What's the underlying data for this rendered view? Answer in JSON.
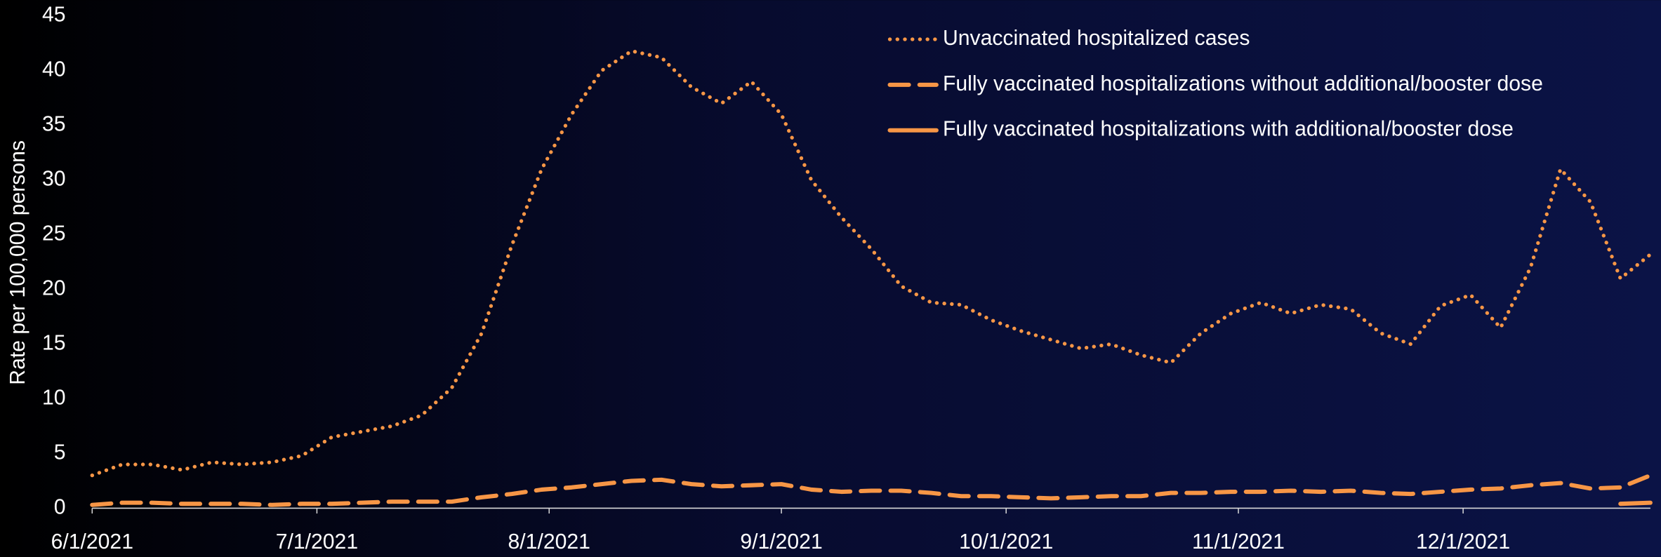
{
  "chart_data": {
    "type": "line",
    "y_label": "Rate per 100,000 persons",
    "x": [
      "2021-06-01",
      "2021-06-05",
      "2021-06-09",
      "2021-06-13",
      "2021-06-17",
      "2021-06-21",
      "2021-06-25",
      "2021-06-29",
      "2021-07-03",
      "2021-07-07",
      "2021-07-11",
      "2021-07-15",
      "2021-07-19",
      "2021-07-23",
      "2021-07-27",
      "2021-07-31",
      "2021-08-04",
      "2021-08-08",
      "2021-08-12",
      "2021-08-16",
      "2021-08-20",
      "2021-08-24",
      "2021-08-28",
      "2021-09-01",
      "2021-09-05",
      "2021-09-09",
      "2021-09-13",
      "2021-09-17",
      "2021-09-21",
      "2021-09-25",
      "2021-09-29",
      "2021-10-03",
      "2021-10-07",
      "2021-10-11",
      "2021-10-15",
      "2021-10-19",
      "2021-10-23",
      "2021-10-27",
      "2021-10-31",
      "2021-11-04",
      "2021-11-08",
      "2021-11-12",
      "2021-11-16",
      "2021-11-20",
      "2021-11-24",
      "2021-11-28",
      "2021-12-02",
      "2021-12-06",
      "2021-12-10",
      "2021-12-14",
      "2021-12-18",
      "2021-12-22",
      "2021-12-26"
    ],
    "series": [
      {
        "name": "Unvaccinated hospitalized cases",
        "color": "#f79646",
        "style": "dotted",
        "values": [
          3,
          4,
          4,
          3.5,
          4.2,
          4,
          4.2,
          4.8,
          6.5,
          7,
          7.5,
          8.5,
          11,
          16,
          24,
          31,
          36,
          40,
          41.8,
          41.2,
          38.5,
          37,
          39,
          36,
          30,
          26.6,
          23.7,
          20.3,
          18.8,
          18.6,
          17.2,
          16.2,
          15.4,
          14.6,
          15,
          14,
          13.3,
          16,
          17.8,
          18.8,
          17.8,
          18.6,
          18.2,
          16,
          15,
          18.5,
          19.5,
          16.5,
          22,
          31,
          28,
          21,
          23.2
        ]
      },
      {
        "name": "Fully vaccinated hospitalizations without additional/booster dose",
        "color": "#f79646",
        "style": "dashed",
        "values": [
          0.3,
          0.5,
          0.5,
          0.4,
          0.4,
          0.4,
          0.3,
          0.4,
          0.4,
          0.5,
          0.6,
          0.6,
          0.6,
          1.0,
          1.3,
          1.7,
          1.9,
          2.2,
          2.5,
          2.6,
          2.2,
          2.0,
          2.1,
          2.2,
          1.7,
          1.5,
          1.6,
          1.6,
          1.4,
          1.1,
          1.1,
          1.0,
          0.9,
          1.0,
          1.1,
          1.1,
          1.4,
          1.4,
          1.5,
          1.5,
          1.6,
          1.5,
          1.6,
          1.4,
          1.3,
          1.5,
          1.7,
          1.8,
          2.1,
          2.3,
          1.8,
          1.9,
          3.0
        ]
      },
      {
        "name": "Fully vaccinated hospitalizations with additional/booster dose",
        "color": "#f79646",
        "style": "solid",
        "values": [
          null,
          null,
          null,
          null,
          null,
          null,
          null,
          null,
          null,
          null,
          null,
          null,
          null,
          null,
          null,
          null,
          null,
          null,
          null,
          null,
          null,
          null,
          null,
          null,
          null,
          null,
          null,
          null,
          null,
          null,
          null,
          null,
          null,
          null,
          null,
          null,
          null,
          null,
          null,
          null,
          null,
          null,
          null,
          null,
          null,
          null,
          null,
          null,
          null,
          null,
          null,
          0.4,
          0.5
        ]
      }
    ],
    "xlim": [
      "2021-06-01",
      "2021-12-26"
    ],
    "xticks": [
      {
        "value": "2021-06-01",
        "label": "6/1/2021"
      },
      {
        "value": "2021-07-01",
        "label": "7/1/2021"
      },
      {
        "value": "2021-08-01",
        "label": "8/1/2021"
      },
      {
        "value": "2021-09-01",
        "label": "9/1/2021"
      },
      {
        "value": "2021-10-01",
        "label": "10/1/2021"
      },
      {
        "value": "2021-11-01",
        "label": "11/1/2021"
      },
      {
        "value": "2021-12-01",
        "label": "12/1/2021"
      }
    ],
    "ylim": [
      0,
      45
    ],
    "yticks": [
      0,
      5,
      10,
      15,
      20,
      25,
      30,
      35,
      40,
      45
    ],
    "grid": false,
    "legend": "top-right"
  }
}
